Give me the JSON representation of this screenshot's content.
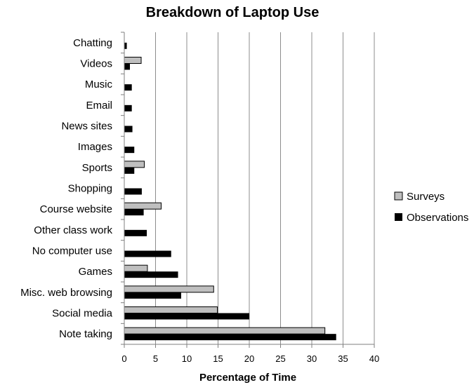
{
  "chart_data": {
    "type": "bar",
    "orientation": "horizontal",
    "title": "Breakdown of Laptop Use",
    "xlabel": "Percentage of Time",
    "ylabel": "",
    "xlim": [
      0,
      40
    ],
    "xticks": [
      0,
      5,
      10,
      15,
      20,
      25,
      30,
      35,
      40
    ],
    "grid": "vertical",
    "legend_position": "right",
    "categories": [
      "Chatting",
      "Videos",
      "Music",
      "Email",
      "News sites",
      "Images",
      "Sports",
      "Shopping",
      "Course website",
      "Other class work",
      "No computer use",
      "Games",
      "Misc. web browsing",
      "Social media",
      "Note taking"
    ],
    "series": [
      {
        "name": "Surveys",
        "color": "#bfbfbf",
        "values": [
          0,
          2.7,
          0,
          0,
          0,
          0,
          3.2,
          0,
          5.9,
          0,
          0,
          3.7,
          14.3,
          14.9,
          32.1
        ]
      },
      {
        "name": "Observations",
        "color": "#000000",
        "values": [
          0.4,
          0.9,
          1.2,
          1.2,
          1.3,
          1.6,
          1.6,
          2.8,
          3.1,
          3.6,
          7.5,
          8.6,
          9.1,
          20.0,
          33.9
        ]
      }
    ]
  }
}
